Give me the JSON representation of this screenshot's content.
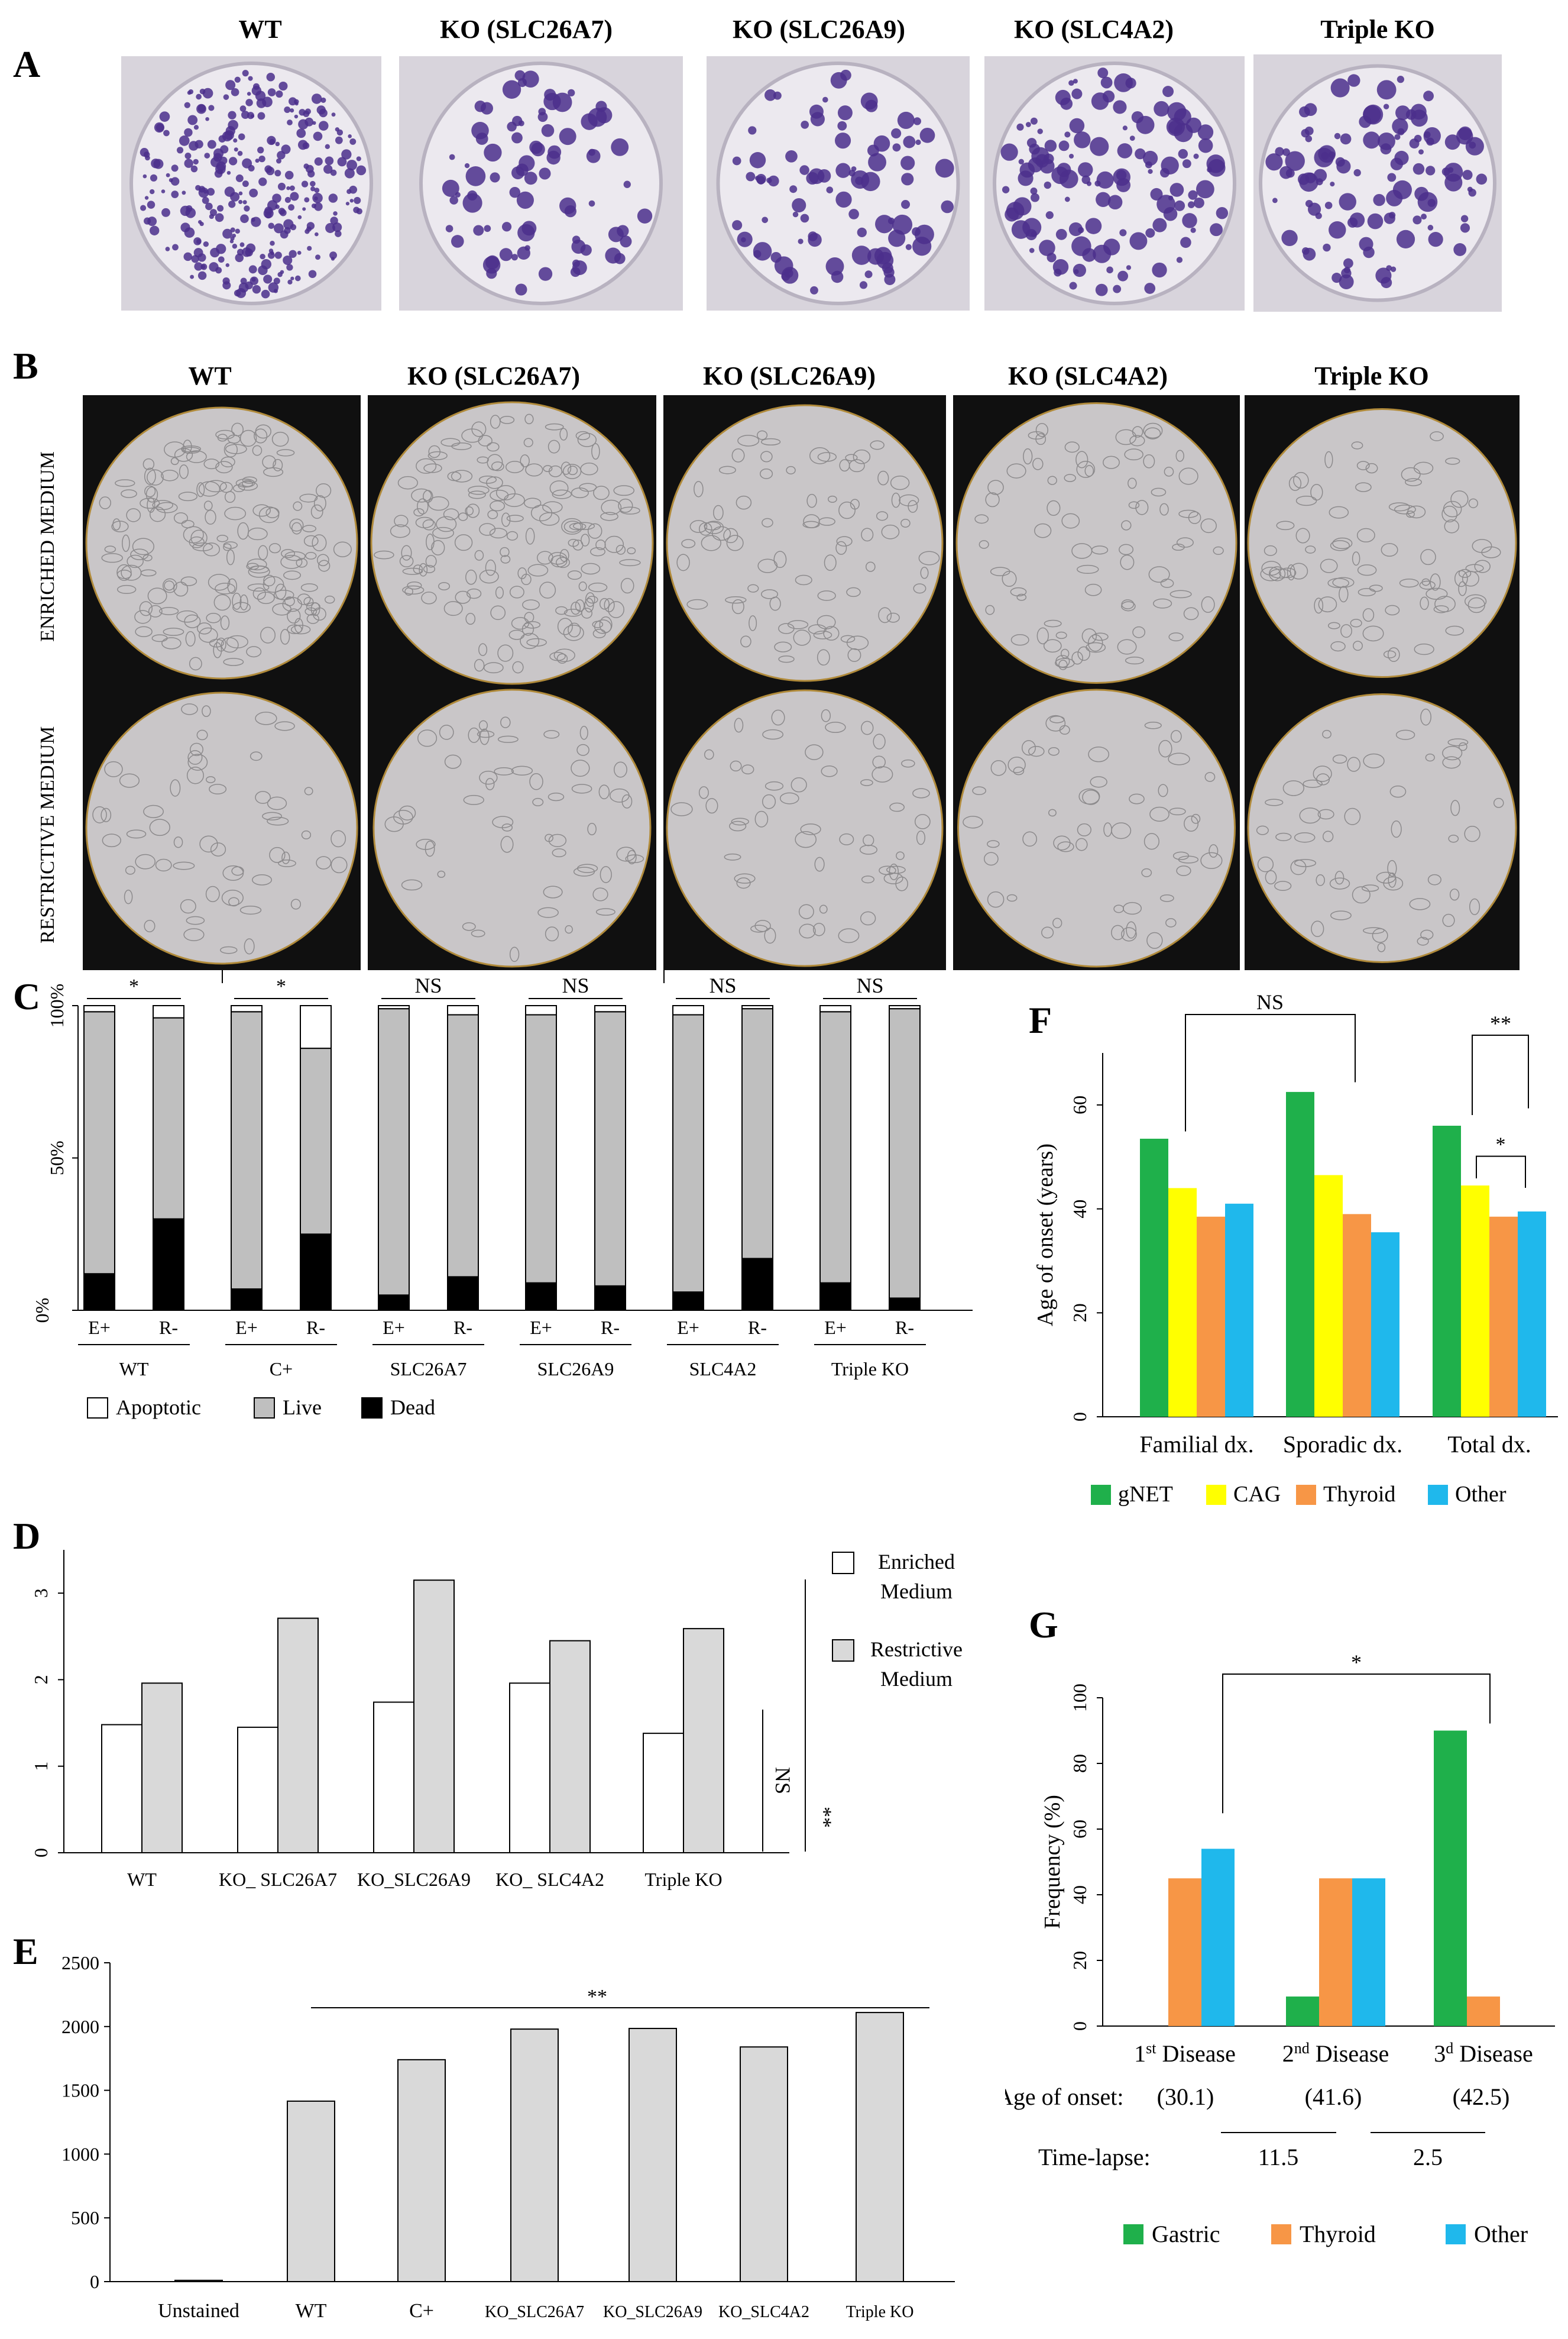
{
  "panel_labels": {
    "a": "A",
    "b": "B",
    "c": "C",
    "d": "D",
    "e": "E",
    "f": "F",
    "g": "G"
  },
  "panel_a": {
    "columns": [
      "WT",
      "KO (SLC26A7)",
      "KO (SLC26A9)",
      "KO (SLC4A2)",
      "Triple KO"
    ]
  },
  "panel_b": {
    "columns": [
      "WT",
      "KO (SLC26A7)",
      "KO (SLC26A9)",
      "KO (SLC4A2)",
      "Triple KO"
    ],
    "rows": [
      "ENRICHED MEDIUM",
      "RESTRICTIVE MEDIUM"
    ]
  },
  "chart_data": [
    {
      "id": "C",
      "type": "bar",
      "stacked": true,
      "groups": [
        "WT",
        "C+",
        "SLC26A7",
        "SLC26A9",
        "SLC4A2",
        "Triple KO"
      ],
      "categories": [
        "E+",
        "R-"
      ],
      "series": [
        {
          "name": "Dead",
          "color": "#000000",
          "values": [
            [
              12,
              30
            ],
            [
              7,
              25
            ],
            [
              5,
              11
            ],
            [
              9,
              8
            ],
            [
              6,
              17
            ],
            [
              9,
              4
            ]
          ]
        },
        {
          "name": "Live",
          "color": "#bfbfbf",
          "values": [
            [
              86,
              66
            ],
            [
              91,
              61
            ],
            [
              94,
              86
            ],
            [
              88,
              90
            ],
            [
              91,
              82
            ],
            [
              89,
              95
            ]
          ]
        },
        {
          "name": "Apoptotic",
          "color": "#ffffff",
          "values": [
            [
              2,
              4
            ],
            [
              2,
              14
            ],
            [
              1,
              3
            ],
            [
              3,
              2
            ],
            [
              3,
              1
            ],
            [
              2,
              1
            ]
          ]
        }
      ],
      "yticks": [
        "0%",
        "50%",
        "100%"
      ],
      "significance": [
        "*",
        "*",
        "NS",
        "NS",
        "NS",
        "NS"
      ],
      "bracket_label": "*",
      "legend": [
        "Apoptotic",
        "Live",
        "Dead"
      ]
    },
    {
      "id": "D",
      "type": "bar",
      "categories": [
        "WT",
        "KO_ SLC26A7",
        "KO_SLC26A9",
        "KO_ SLC4A2",
        "Triple KO"
      ],
      "series": [
        {
          "name": "Enriched Medium",
          "color": "#ffffff",
          "values": [
            1.48,
            1.45,
            1.74,
            1.96,
            1.38
          ]
        },
        {
          "name": "Restrictive Medium",
          "color": "#d9d9d9",
          "values": [
            1.96,
            2.71,
            3.15,
            2.45,
            2.59
          ]
        }
      ],
      "ylim": [
        0,
        3.5
      ],
      "yticks": [
        "0",
        "1",
        "2",
        "3"
      ],
      "legend": [
        "Enriched Medium",
        "Restrictive Medium"
      ],
      "sig_inner": "NS",
      "sig_outer": "**"
    },
    {
      "id": "E",
      "type": "bar",
      "categories": [
        "Unstained",
        "WT",
        "C+",
        "KO_SLC26A7",
        "KO_SLC26A9",
        "KO_SLC4A2",
        "Triple KO"
      ],
      "values": [
        10,
        1415,
        1740,
        1980,
        1985,
        1840,
        2110
      ],
      "ylim": [
        0,
        2500
      ],
      "yticks": [
        "0",
        "500",
        "1000",
        "1500",
        "2000",
        "2500"
      ],
      "significance": "**"
    },
    {
      "id": "F",
      "type": "bar",
      "categories": [
        "Familial dx.",
        "Sporadic dx.",
        "Total dx."
      ],
      "series": [
        {
          "name": "gNET",
          "color": "#1fb04b",
          "values": [
            53.5,
            62.5,
            56
          ]
        },
        {
          "name": "CAG",
          "color": "#ffff00",
          "values": [
            44,
            46.5,
            44.5
          ]
        },
        {
          "name": "Thyroid",
          "color": "#f79646",
          "values": [
            38.5,
            39,
            38.5
          ]
        },
        {
          "name": "Other",
          "color": "#1fb8ec",
          "values": [
            41,
            35.5,
            39.5
          ]
        }
      ],
      "ylabel": "Age of onset (years)",
      "ylim": [
        0,
        70
      ],
      "yticks": [
        "0",
        "20",
        "40",
        "60"
      ],
      "sig_ns": "NS",
      "sig_total": "**",
      "sig_pair": "*"
    },
    {
      "id": "G",
      "type": "bar",
      "categories": [
        "1st Disease",
        "2nd Disease",
        "3d Disease"
      ],
      "category_main": [
        "1",
        "2",
        "3"
      ],
      "category_sup": [
        "st",
        "nd",
        "d"
      ],
      "series": [
        {
          "name": "Gastric",
          "color": "#1fb04b",
          "values": [
            0,
            9,
            90
          ]
        },
        {
          "name": "Thyroid",
          "color": "#f79646",
          "values": [
            45,
            45,
            9
          ]
        },
        {
          "name": "Other",
          "color": "#1fb8ec",
          "values": [
            54,
            45,
            0
          ]
        }
      ],
      "ylabel": "Frequency (%)",
      "ylim": [
        0,
        100
      ],
      "yticks": [
        "0",
        "20",
        "40",
        "60",
        "80",
        "100"
      ],
      "sig": "*",
      "age_label": "Age of onset:",
      "age_values": [
        "(30.1)",
        "(41.6)",
        "(42.5)"
      ],
      "timelapse_label": "Time-lapse:",
      "timelapse_values": [
        "11.5",
        "2.5"
      ],
      "disease_word": "Disease"
    }
  ]
}
